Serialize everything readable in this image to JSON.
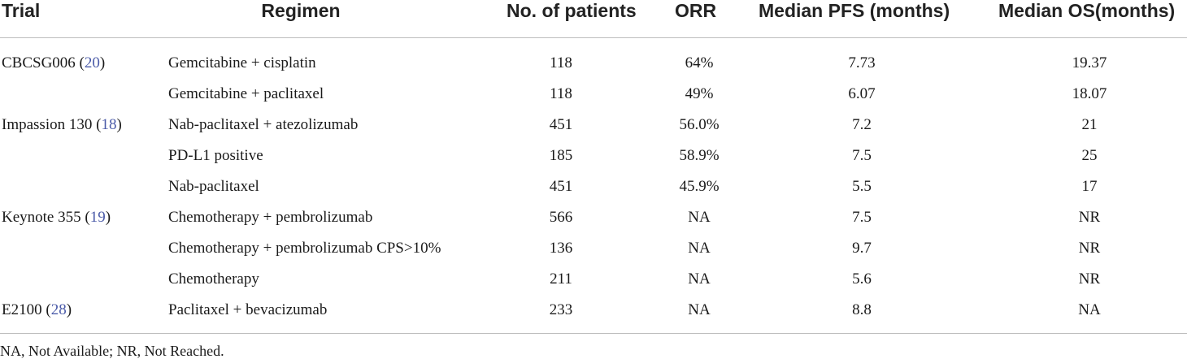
{
  "table": {
    "headers": {
      "trial": "Trial",
      "regimen": "Regimen",
      "patients": "No. of patients",
      "orr": "ORR",
      "pfs": "Median PFS (months)",
      "os": "Median OS(months)"
    },
    "rows": [
      {
        "trial": "CBCSG006 (",
        "ref": "20",
        "close": ")",
        "regimen": "Gemcitabine + cisplatin",
        "patients": "118",
        "orr": "64%",
        "pfs": "7.73",
        "os": "19.37"
      },
      {
        "trial": "",
        "ref": "",
        "close": "",
        "regimen": "Gemcitabine + paclitaxel",
        "patients": "118",
        "orr": "49%",
        "pfs": "6.07",
        "os": "18.07"
      },
      {
        "trial": "Impassion 130 (",
        "ref": "18",
        "close": ")",
        "regimen": "Nab-paclitaxel + atezolizumab",
        "patients": "451",
        "orr": "56.0%",
        "pfs": "7.2",
        "os": "21"
      },
      {
        "trial": "",
        "ref": "",
        "close": "",
        "regimen": "PD-L1 positive",
        "patients": "185",
        "orr": "58.9%",
        "pfs": "7.5",
        "os": "25"
      },
      {
        "trial": "",
        "ref": "",
        "close": "",
        "regimen": "Nab-paclitaxel",
        "patients": "451",
        "orr": "45.9%",
        "pfs": "5.5",
        "os": "17"
      },
      {
        "trial": "Keynote 355 (",
        "ref": "19",
        "close": ")",
        "regimen": "Chemotherapy + pembrolizumab",
        "patients": "566",
        "orr": "NA",
        "pfs": "7.5",
        "os": "NR"
      },
      {
        "trial": "",
        "ref": "",
        "close": "",
        "regimen": "Chemotherapy + pembrolizumab CPS>10%",
        "patients": "136",
        "orr": "NA",
        "pfs": "9.7",
        "os": "NR"
      },
      {
        "trial": "",
        "ref": "",
        "close": "",
        "regimen": "Chemotherapy",
        "patients": "211",
        "orr": "NA",
        "pfs": "5.6",
        "os": "NR"
      },
      {
        "trial": "E2100 (",
        "ref": "28",
        "close": ")",
        "regimen": "Paclitaxel + bevacizumab",
        "patients": "233",
        "orr": "NA",
        "pfs": "8.8",
        "os": "NA"
      }
    ],
    "footnote": "NA, Not Available; NR, Not Reached.",
    "colors": {
      "reference_link": "#4a5aa8",
      "rule": "#bdbdbd",
      "text": "#1a1a1a"
    }
  }
}
